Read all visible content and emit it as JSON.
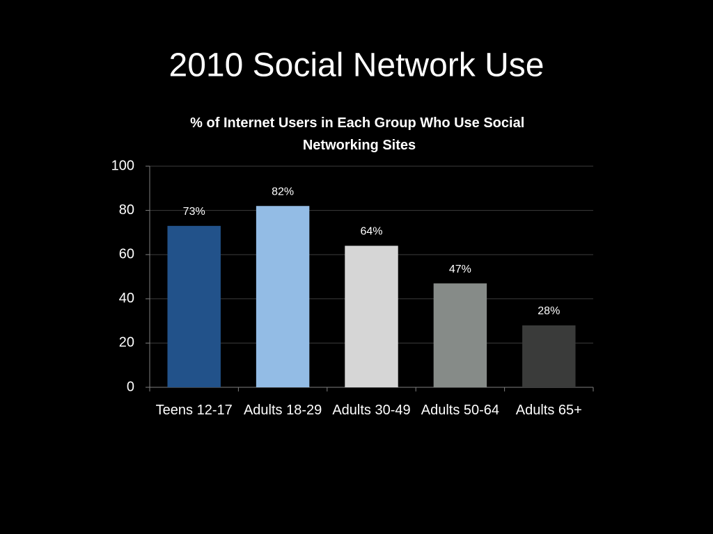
{
  "title": "2010 Social Network Use",
  "chart_data": {
    "type": "bar",
    "title": "% of Internet Users in Each Group Who Use Social Networking Sites",
    "categories": [
      "Teens 12-17",
      "Adults 18-29",
      "Adults 30-49",
      "Adults 50-64",
      "Adults 65+"
    ],
    "values": [
      73,
      82,
      64,
      47,
      28
    ],
    "value_labels": [
      "73%",
      "82%",
      "64%",
      "47%",
      "28%"
    ],
    "colors": [
      "#22528a",
      "#93bce5",
      "#d6d6d6",
      "#868b88",
      "#3a3b3a"
    ],
    "ylim": [
      0,
      100
    ],
    "yticks": [
      0,
      20,
      40,
      60,
      80,
      100
    ],
    "grid": true
  }
}
